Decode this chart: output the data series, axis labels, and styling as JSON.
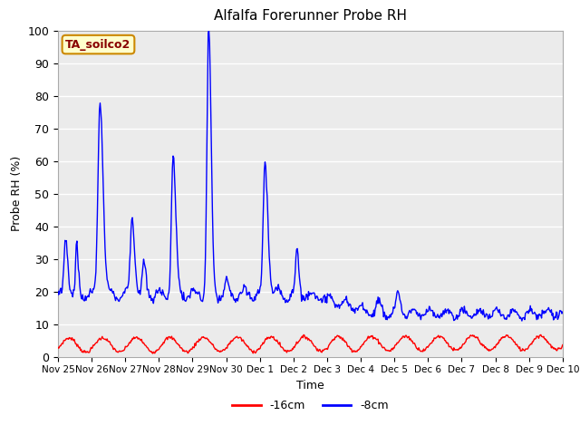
{
  "title": "Alfalfa Forerunner Probe RH",
  "ylabel": "Probe RH (%)",
  "xlabel": "Time",
  "ylim": [
    0,
    100
  ],
  "bg_color": "#ebebeb",
  "legend_label": "TA_soilco2",
  "xtick_labels": [
    "Nov 25",
    "Nov 26",
    "Nov 27",
    "Nov 28",
    "Nov 29",
    "Nov 30",
    "Dec 1",
    "Dec 2",
    "Dec 3",
    "Dec 4",
    "Dec 5",
    "Dec 6",
    "Dec 7",
    "Dec 8",
    "Dec 9",
    "Dec 10"
  ],
  "line_color_red": "#ff0000",
  "line_color_blue": "#0000ff",
  "legend_entries": [
    "-16cm",
    "-8cm"
  ],
  "label_facecolor": "#ffffcc",
  "label_edgecolor": "#cc8800",
  "label_textcolor": "#880000"
}
